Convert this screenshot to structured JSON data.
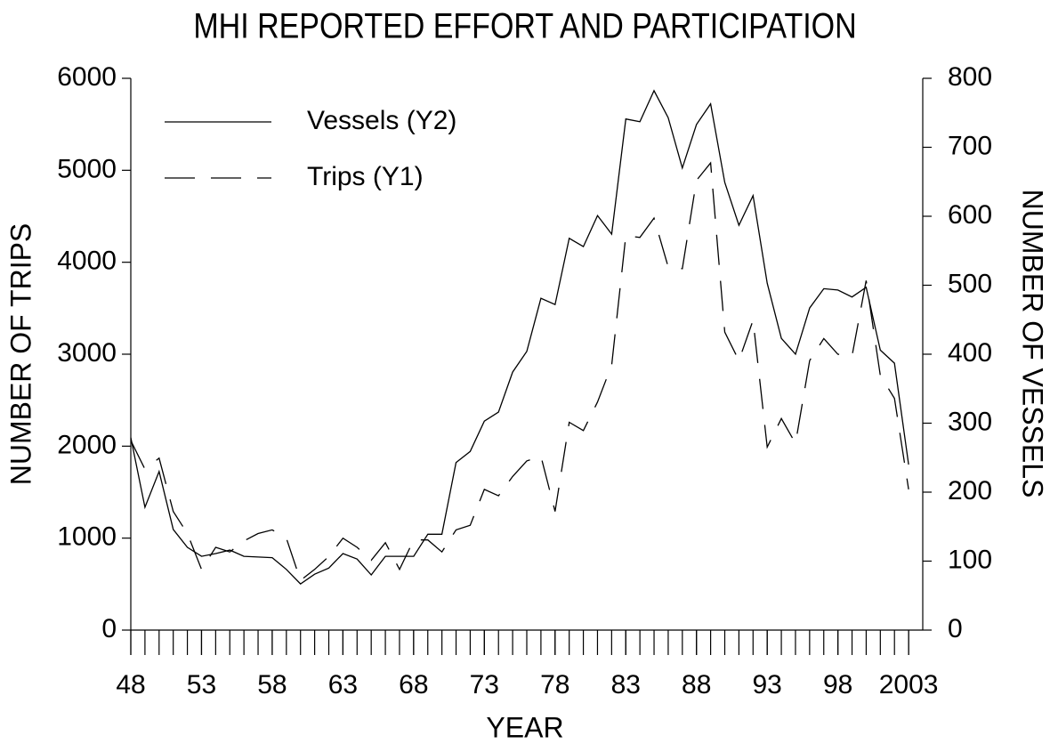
{
  "chart_data": {
    "type": "line",
    "title": "MHI REPORTED EFFORT AND PARTICIPATION",
    "x_label": "YEAR",
    "y_label": "NUMBER OF TRIPS",
    "y2_label": "NUMBER OF VESSELS",
    "x": [
      1948,
      1949,
      1950,
      1951,
      1952,
      1953,
      1954,
      1955,
      1956,
      1957,
      1958,
      1959,
      1960,
      1961,
      1962,
      1963,
      1964,
      1965,
      1966,
      1967,
      1968,
      1969,
      1970,
      1971,
      1972,
      1973,
      1974,
      1975,
      1976,
      1977,
      1978,
      1979,
      1980,
      1981,
      1982,
      1983,
      1984,
      1985,
      1986,
      1987,
      1988,
      1989,
      1990,
      1991,
      1992,
      1993,
      1994,
      1995,
      1996,
      1997,
      1998,
      1999,
      2000,
      2001,
      2002,
      2003
    ],
    "series": [
      {
        "name": "Vessels (Y2)",
        "color": "#000000",
        "line_style": "solid",
        "axis": "y2",
        "values": [
          279,
          178,
          230,
          146,
          120,
          107,
          111,
          116,
          107,
          106,
          105,
          88,
          67,
          81,
          90,
          111,
          103,
          80,
          107,
          107,
          107,
          139,
          139,
          243,
          259,
          303,
          316,
          374,
          404,
          481,
          472,
          568,
          556,
          601,
          574,
          741,
          737,
          782,
          743,
          670,
          733,
          763,
          649,
          587,
          630,
          503,
          423,
          400,
          467,
          495,
          493,
          483,
          497,
          406,
          387,
          240
        ]
      },
      {
        "name": "Trips (Y1)",
        "color": "#000000",
        "line_style": "dashed",
        "values": [
          2060,
          1750,
          1870,
          1290,
          1050,
          660,
          900,
          850,
          970,
          1050,
          1090,
          1000,
          540,
          660,
          800,
          1000,
          900,
          760,
          950,
          660,
          980,
          980,
          850,
          1090,
          1140,
          1530,
          1460,
          1670,
          1840,
          1890,
          1290,
          2260,
          2170,
          2480,
          2880,
          4290,
          4270,
          4480,
          3950,
          3930,
          4890,
          5080,
          3240,
          2930,
          3370,
          1990,
          2300,
          2030,
          2930,
          3170,
          3000,
          2980,
          3800,
          2770,
          2520,
          1530
        ]
      }
    ],
    "xlim": [
      1948,
      2004
    ],
    "xticks": [
      {
        "value": 1948,
        "label": "48"
      },
      {
        "value": 1953,
        "label": "53"
      },
      {
        "value": 1958,
        "label": "58"
      },
      {
        "value": 1963,
        "label": "63"
      },
      {
        "value": 1968,
        "label": "68"
      },
      {
        "value": 1973,
        "label": "73"
      },
      {
        "value": 1978,
        "label": "78"
      },
      {
        "value": 1983,
        "label": "83"
      },
      {
        "value": 1988,
        "label": "88"
      },
      {
        "value": 1993,
        "label": "93"
      },
      {
        "value": 1998,
        "label": "98"
      },
      {
        "value": 2003,
        "label": "2003"
      }
    ],
    "ylim": [
      0,
      6000
    ],
    "yticks": [
      0,
      1000,
      2000,
      3000,
      4000,
      5000,
      6000
    ],
    "y2lim": [
      0,
      800
    ],
    "y2ticks": [
      0,
      100,
      200,
      300,
      400,
      500,
      600,
      700,
      800
    ],
    "grid": false,
    "legend": "upper-left"
  }
}
